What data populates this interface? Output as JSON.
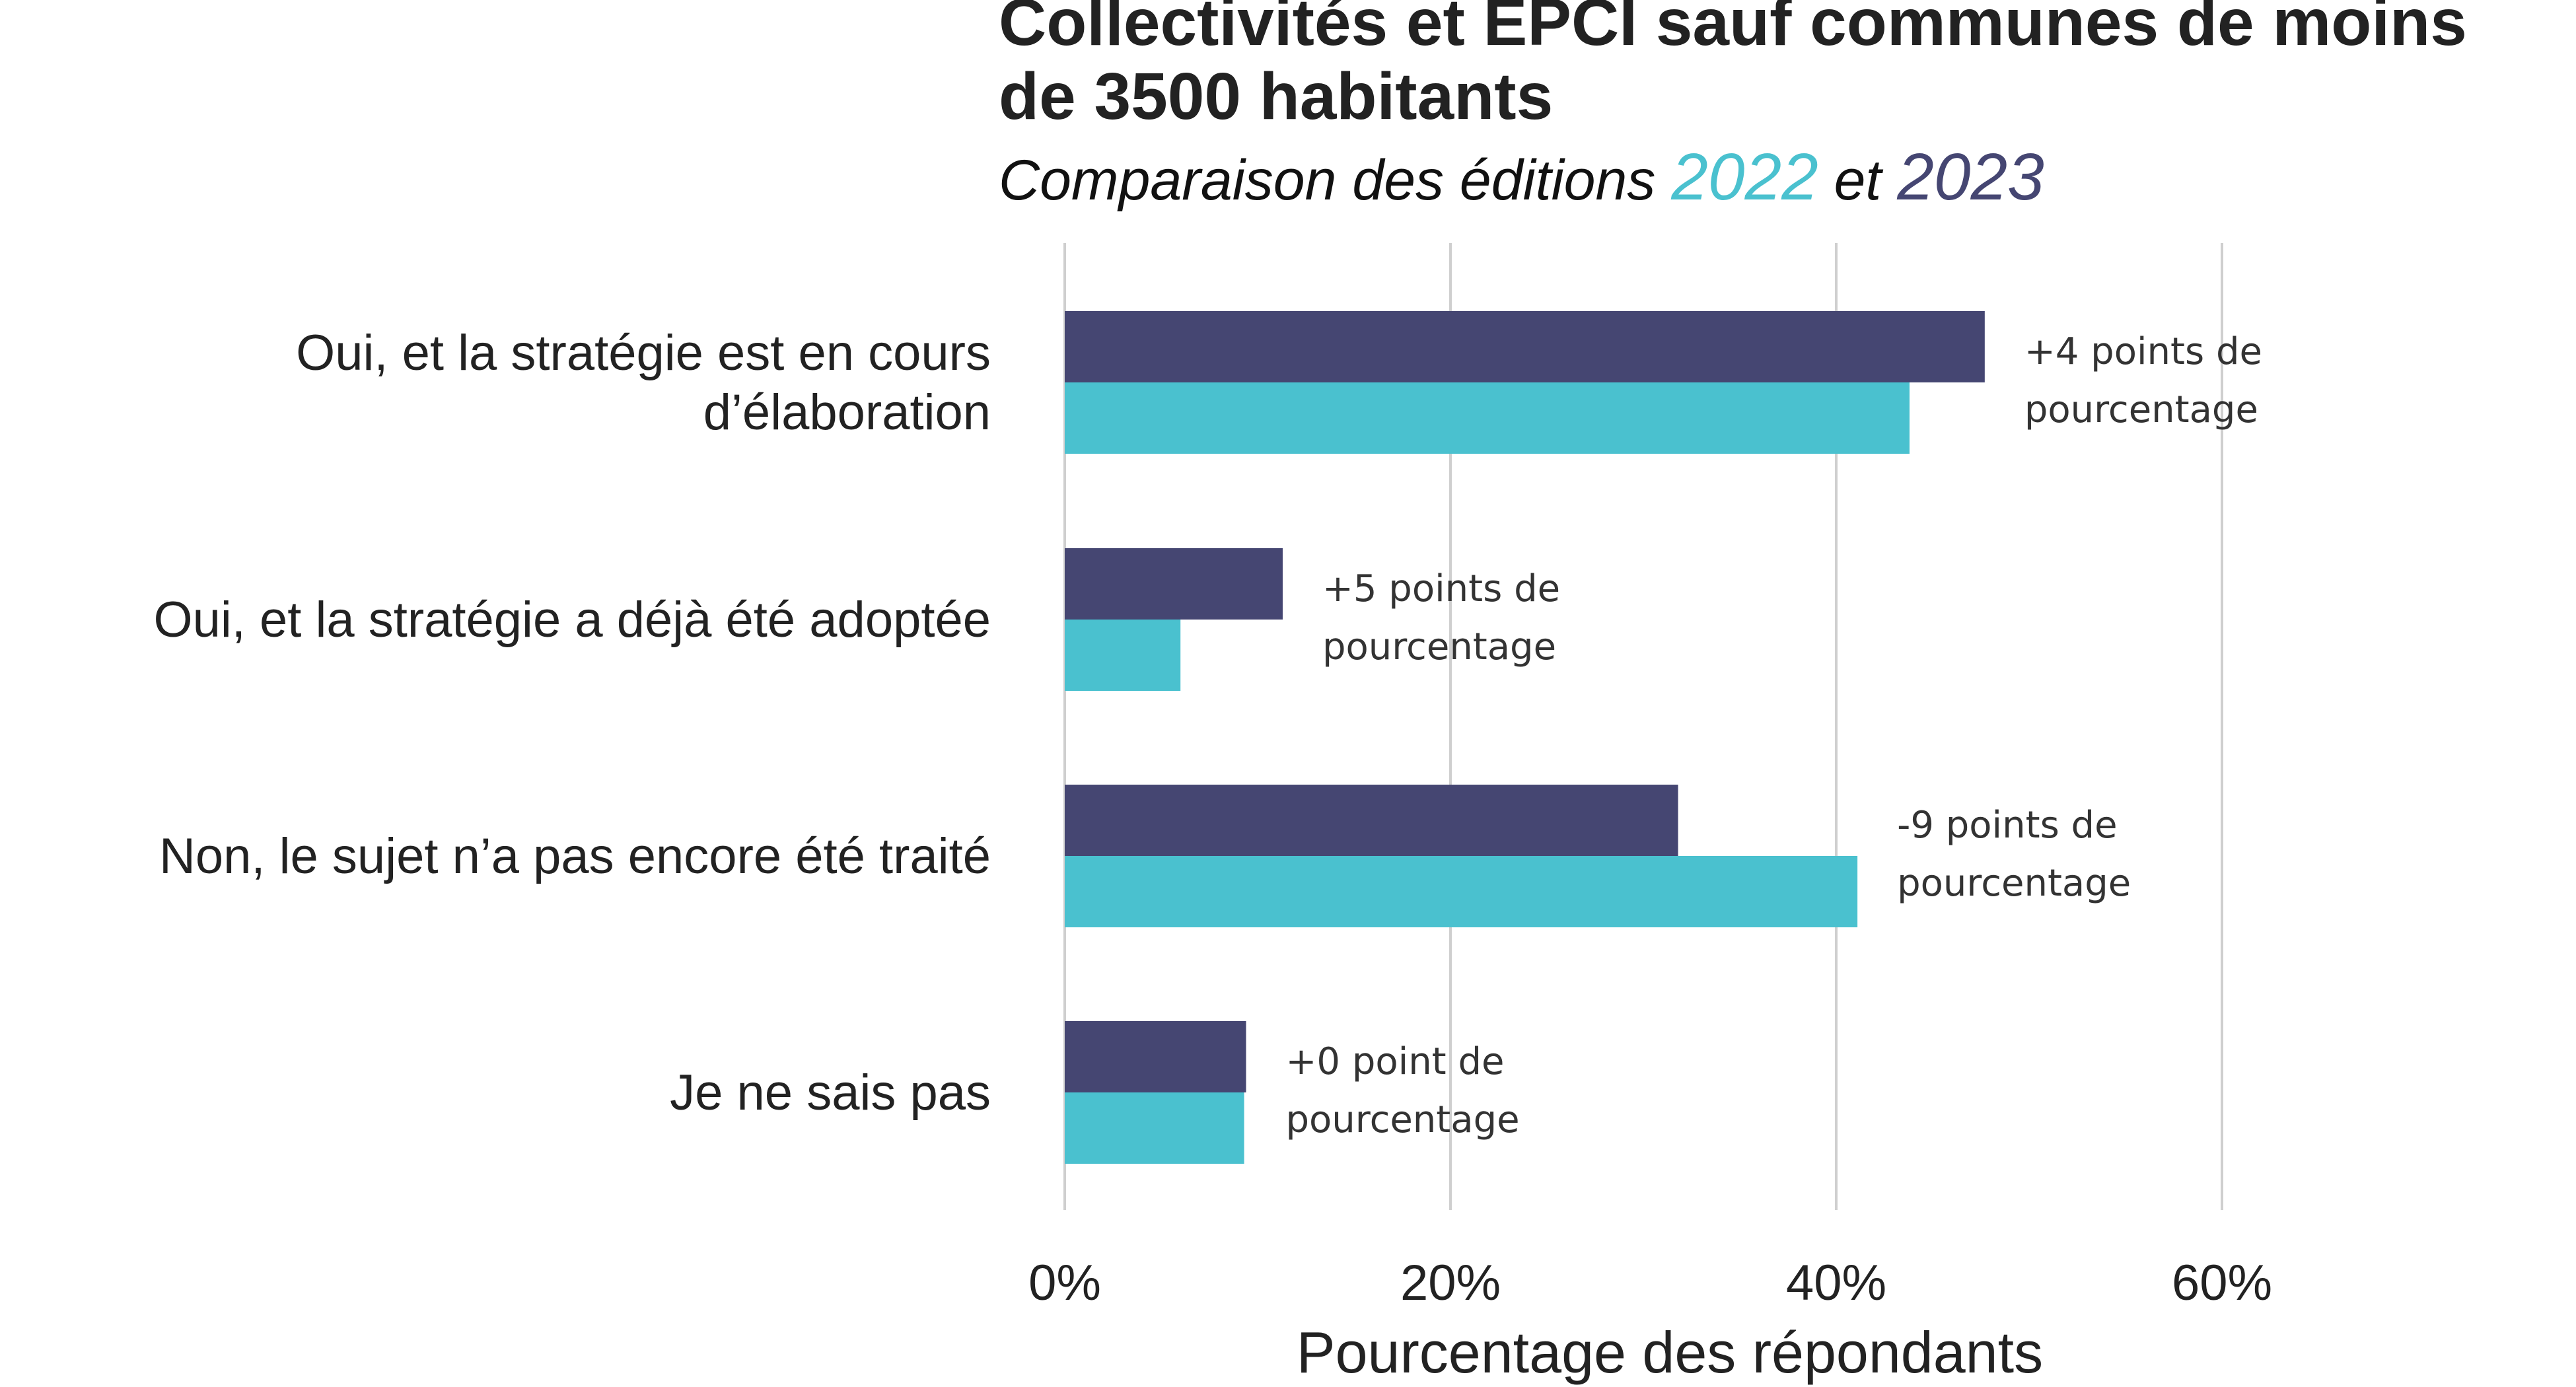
{
  "title": "Collectivités et EPCI sauf communes de moins de 3500 habitants",
  "subtitle": {
    "prefix": "Comparaison des éditions ",
    "year_a": "2022",
    "middle": " et ",
    "year_b": "2023"
  },
  "colors": {
    "2022": "#4ac1cf",
    "2023": "#454672",
    "grid": "#cfcfcf",
    "text": "#222222"
  },
  "chart_data": {
    "type": "bar",
    "orientation": "horizontal",
    "categories": [
      [
        "Oui, et la stratégie est en cours",
        "d’élaboration"
      ],
      [
        "Oui, et la stratégie a déjà été adoptée"
      ],
      [
        "Non, le sujet n’a pas encore été traité"
      ],
      [
        "Je ne sais pas"
      ]
    ],
    "series": [
      {
        "name": "2023",
        "values": [
          47.7,
          11.3,
          31.8,
          9.4
        ]
      },
      {
        "name": "2022",
        "values": [
          43.8,
          6.0,
          41.1,
          9.3
        ]
      }
    ],
    "annotations": [
      [
        "+4 points de",
        "pourcentage"
      ],
      [
        "+5 points de",
        "pourcentage"
      ],
      [
        "-9 points de",
        "pourcentage"
      ],
      [
        "+0 point de",
        "pourcentage"
      ]
    ],
    "xlabel": "Pourcentage des répondants",
    "xlim": [
      0,
      60
    ],
    "xticks": [
      0,
      20,
      40,
      60
    ],
    "xtick_labels": [
      "0%",
      "20%",
      "40%",
      "60%"
    ],
    "grid": "vertical"
  }
}
